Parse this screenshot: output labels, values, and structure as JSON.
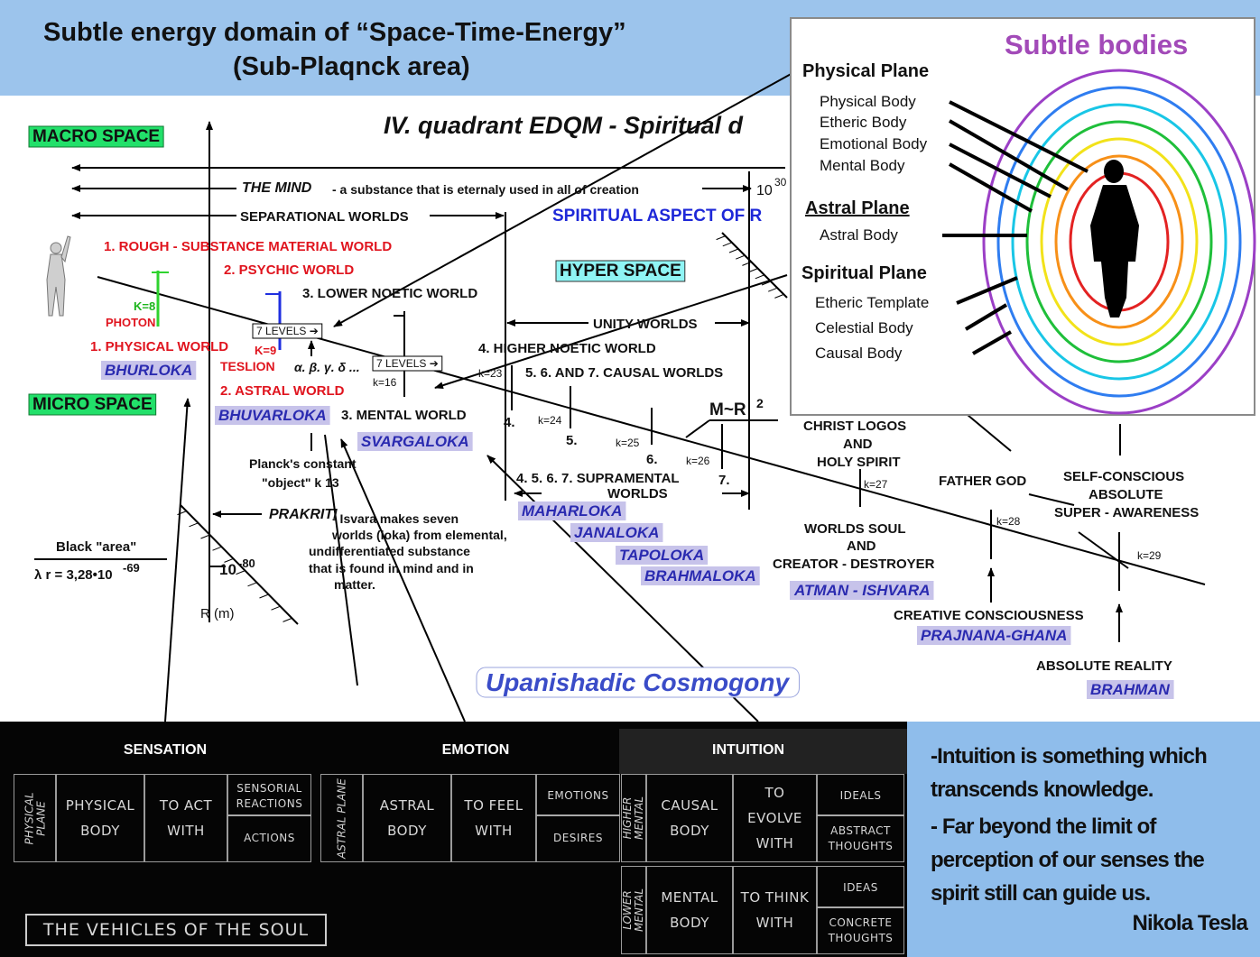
{
  "header": {
    "title_line1": "Subtle energy domain of  “Space-Time-Energy”",
    "title_line2": "(Sub-Plaqnck area)"
  },
  "diagram": {
    "labels": [
      "IV. quadrant EDQM - Spiritual d",
      "MACRO SPACE",
      "MICRO SPACE",
      "HYPER SPACE",
      "THE MIND",
      "- a substance that is eternaly used in all of creation",
      "10",
      "30",
      "SEPARATIONAL WORLDS",
      "SPIRITUAL ASPECT OF R",
      "1. ROUGH - SUBSTANCE MATERIAL WORLD",
      "2. PSYCHIC WORLD",
      "3. LOWER NOETIC WORLD",
      "K=8",
      "PHOTON",
      "7 LEVELS ➔",
      "UNITY WORLDS",
      "1. PHYSICAL WORLD",
      "K=9",
      "TESLION",
      "4. HIGHER NOETIC WORLD",
      "BHURLOKA",
      "7 LEVELS ➔",
      "α. β. γ. δ ...",
      "k=16",
      "k=23",
      "5. 6. AND 7. CAUSAL WORLDS",
      "2. ASTRAL WORLD",
      "BHUVARLOKA",
      "3. MENTAL WORLD",
      "M~R",
      "2",
      "4.",
      "k=24",
      "5.",
      "k=25",
      "6.",
      "k=26",
      "7.",
      "SVARGALOKA",
      "Planck's constant",
      "\"object\" k 13",
      "4. 5. 6. 7. SUPRAMENTAL",
      "WORLDS",
      "CHRIST LOGOS",
      "AND",
      "HOLY SPIRIT",
      "k=27",
      "FATHER GOD",
      "SELF-CONSCIOUS",
      "ABSOLUTE",
      "SUPER - AWARENESS",
      "PRAKRITI",
      "- Isvara makes seven",
      "worlds (loka) from elemental,",
      "undifferentiated substance",
      "that is found in mind and in",
      "matter.",
      "MAHARLOKA",
      "JANALOKA",
      "TAPOLOKA",
      "BRAHMALOKA",
      "k=28",
      "WORLDS SOUL",
      "AND",
      "CREATOR - DESTROYER",
      "Black \"area\"",
      "λ r = 3,28•10",
      "-69",
      "10",
      "-80",
      "k=29",
      "ATMAN - ISHVARA",
      "R (m)",
      "CREATIVE CONSCIOUSNESS",
      "PRAJNANA-GHANA",
      "ABSOLUTE REALITY",
      "BRAHMAN",
      "Upanishadic Cosmogony"
    ]
  },
  "subtle_bodies": {
    "title": "Subtle bodies",
    "planes": [
      {
        "name": "Physical Plane",
        "bodies": [
          "Physical Body",
          "Etheric Body",
          "Emotional Body",
          "Mental Body"
        ]
      },
      {
        "name": "Astral Plane",
        "bodies": [
          "Astral Body"
        ]
      },
      {
        "name": "Spiritual Plane",
        "bodies": [
          "Etheric Template",
          "Celestial Body",
          "Causal Body"
        ]
      }
    ]
  },
  "table": {
    "headers": [
      "SENSATION",
      "EMOTION",
      "INTUITION"
    ],
    "rows": [
      [
        "PHYSICAL PLANE",
        "PHYSICAL BODY",
        "TO ACT WITH",
        "SENSORIAL REACTIONS",
        "ACTIONS"
      ],
      [
        "ASTRAL PLANE",
        "ASTRAL BODY",
        "TO FEEL WITH",
        "EMOTIONS",
        "DESIRES"
      ],
      [
        "HIGHER MENTAL",
        "CAUSAL BODY",
        "TO EVOLVE WITH",
        "IDEALS",
        "ABSTRACT THOUGHTS"
      ],
      [
        "LOWER MENTAL",
        "MENTAL BODY",
        "TO THINK WITH",
        "IDEAS",
        "CONCRETE THOUGHTS"
      ]
    ],
    "caption": "THE VEHICLES OF THE SOUL"
  },
  "quote": {
    "lines": [
      "-Intuition is something which transcends knowledge.",
      "- Far beyond the limit of perception of our senses the spirit still can guide us."
    ],
    "author": "Nikola Tesla"
  }
}
